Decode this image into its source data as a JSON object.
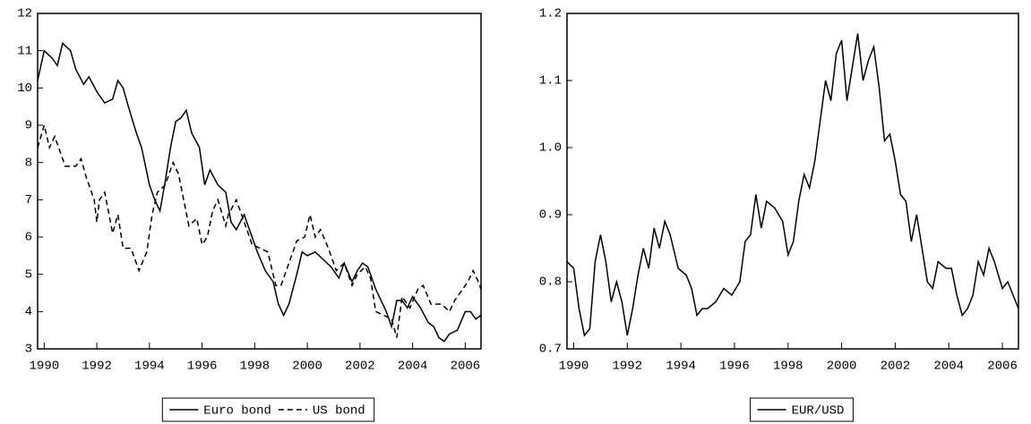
{
  "chart_data": [
    {
      "type": "line",
      "xlim": [
        1989.75,
        2006.6
      ],
      "xticks": [
        1990,
        1992,
        1994,
        1996,
        1998,
        2000,
        2002,
        2004,
        2006
      ],
      "ylim": [
        3,
        12
      ],
      "yticks": [
        3,
        4,
        5,
        6,
        7,
        8,
        9,
        10,
        11,
        12
      ],
      "series": [
        {
          "name": "Euro bond",
          "color": "#000000",
          "style": "solid",
          "x": [
            1989.75,
            1990.0,
            1990.3,
            1990.5,
            1990.7,
            1991.0,
            1991.2,
            1991.5,
            1991.7,
            1992.0,
            1992.3,
            1992.6,
            1992.8,
            1993.0,
            1993.2,
            1993.5,
            1993.7,
            1994.0,
            1994.2,
            1994.4,
            1994.6,
            1994.8,
            1995.0,
            1995.2,
            1995.4,
            1995.6,
            1995.9,
            1996.1,
            1996.3,
            1996.6,
            1996.9,
            1997.1,
            1997.3,
            1997.6,
            1997.9,
            1998.1,
            1998.4,
            1998.7,
            1998.9,
            1999.1,
            1999.3,
            1999.6,
            1999.8,
            2000.0,
            2000.3,
            2000.6,
            2000.9,
            2001.2,
            2001.4,
            2001.7,
            2001.9,
            2002.1,
            2002.3,
            2002.6,
            2002.8,
            2003.0,
            2003.2,
            2003.4,
            2003.6,
            2003.8,
            2004.0,
            2004.3,
            2004.6,
            2004.8,
            2005.0,
            2005.2,
            2005.4,
            2005.7,
            2006.0,
            2006.2,
            2006.4,
            2006.6
          ],
          "values": [
            10.2,
            11.0,
            10.8,
            10.6,
            11.2,
            11.0,
            10.5,
            10.1,
            10.3,
            9.9,
            9.6,
            9.7,
            10.2,
            10.0,
            9.5,
            8.8,
            8.4,
            7.4,
            7.0,
            6.7,
            7.5,
            8.4,
            9.1,
            9.2,
            9.4,
            8.8,
            8.4,
            7.4,
            7.8,
            7.4,
            7.2,
            6.4,
            6.2,
            6.6,
            6.0,
            5.6,
            5.1,
            4.8,
            4.2,
            3.9,
            4.2,
            5.0,
            5.6,
            5.5,
            5.6,
            5.4,
            5.2,
            4.9,
            5.3,
            4.8,
            5.1,
            5.3,
            5.2,
            4.6,
            4.3,
            4.0,
            3.6,
            4.3,
            4.3,
            4.1,
            4.4,
            4.1,
            3.7,
            3.6,
            3.3,
            3.2,
            3.4,
            3.5,
            4.0,
            4.0,
            3.8,
            3.9
          ]
        },
        {
          "name": "US bond",
          "color": "#000000",
          "style": "dashed",
          "x": [
            1989.75,
            1990.0,
            1990.2,
            1990.4,
            1990.6,
            1990.8,
            1991.2,
            1991.4,
            1991.6,
            1991.9,
            1992.0,
            1992.1,
            1992.3,
            1992.6,
            1992.8,
            1993.0,
            1993.3,
            1993.6,
            1993.9,
            1994.1,
            1994.3,
            1994.6,
            1994.9,
            1995.1,
            1995.3,
            1995.5,
            1995.8,
            1996.0,
            1996.2,
            1996.4,
            1996.6,
            1996.9,
            1997.0,
            1997.3,
            1997.6,
            1997.9,
            1998.2,
            1998.5,
            1998.8,
            1999.0,
            1999.3,
            1999.6,
            1999.9,
            2000.1,
            2000.3,
            2000.5,
            2000.8,
            2001.1,
            2001.4,
            2001.7,
            2001.9,
            2002.2,
            2002.4,
            2002.6,
            2002.9,
            2003.2,
            2003.4,
            2003.6,
            2003.9,
            2004.2,
            2004.4,
            2004.7,
            2004.9,
            2005.1,
            2005.4,
            2005.6,
            2005.8,
            2006.1,
            2006.3,
            2006.5,
            2006.6
          ],
          "values": [
            8.4,
            9.0,
            8.4,
            8.7,
            8.3,
            7.9,
            7.9,
            8.1,
            7.6,
            7.0,
            6.4,
            7.0,
            7.2,
            6.1,
            6.6,
            5.7,
            5.7,
            5.1,
            5.6,
            6.6,
            7.2,
            7.4,
            8.0,
            7.7,
            7.0,
            6.3,
            6.5,
            5.8,
            6.0,
            6.7,
            7.0,
            6.3,
            6.6,
            7.0,
            6.4,
            5.8,
            5.7,
            5.6,
            4.7,
            4.7,
            5.3,
            5.9,
            6.0,
            6.6,
            6.0,
            6.2,
            5.7,
            5.1,
            5.3,
            4.7,
            5.0,
            5.2,
            4.9,
            4.0,
            3.9,
            3.8,
            3.3,
            4.4,
            4.1,
            4.6,
            4.7,
            4.2,
            4.2,
            4.2,
            4.0,
            4.3,
            4.5,
            4.8,
            5.1,
            4.8,
            4.6
          ]
        }
      ]
    },
    {
      "type": "line",
      "xlim": [
        1989.75,
        2006.6
      ],
      "xticks": [
        1990,
        1992,
        1994,
        1996,
        1998,
        2000,
        2002,
        2004,
        2006
      ],
      "ylim": [
        0.7,
        1.2
      ],
      "yticks": [
        0.7,
        0.8,
        0.9,
        {
          "value": 1,
          "label": "1.0"
        },
        1.1,
        1.2
      ],
      "series": [
        {
          "name": "EUR/USD",
          "color": "#000000",
          "style": "solid",
          "x": [
            1989.75,
            1990.0,
            1990.2,
            1990.4,
            1990.6,
            1990.8,
            1991.0,
            1991.2,
            1991.4,
            1991.6,
            1991.8,
            1992.0,
            1992.2,
            1992.4,
            1992.6,
            1992.8,
            1993.0,
            1993.2,
            1993.4,
            1993.6,
            1993.9,
            1994.2,
            1994.4,
            1994.6,
            1994.8,
            1995.0,
            1995.3,
            1995.6,
            1995.9,
            1996.2,
            1996.4,
            1996.6,
            1996.8,
            1997.0,
            1997.2,
            1997.5,
            1997.8,
            1998.0,
            1998.2,
            1998.4,
            1998.6,
            1998.8,
            1999.0,
            1999.2,
            1999.4,
            1999.6,
            1999.8,
            2000.0,
            2000.2,
            2000.4,
            2000.6,
            2000.8,
            2001.0,
            2001.2,
            2001.4,
            2001.6,
            2001.8,
            2002.0,
            2002.2,
            2002.4,
            2002.6,
            2002.8,
            2003.0,
            2003.2,
            2003.4,
            2003.6,
            2003.9,
            2004.1,
            2004.3,
            2004.5,
            2004.7,
            2004.9,
            2005.1,
            2005.3,
            2005.5,
            2005.7,
            2006.0,
            2006.2,
            2006.4,
            2006.6
          ],
          "values": [
            0.83,
            0.82,
            0.76,
            0.72,
            0.73,
            0.83,
            0.87,
            0.83,
            0.77,
            0.8,
            0.77,
            0.72,
            0.76,
            0.81,
            0.85,
            0.82,
            0.88,
            0.85,
            0.89,
            0.87,
            0.82,
            0.81,
            0.79,
            0.75,
            0.76,
            0.76,
            0.77,
            0.79,
            0.78,
            0.8,
            0.86,
            0.87,
            0.93,
            0.88,
            0.92,
            0.91,
            0.89,
            0.84,
            0.86,
            0.92,
            0.96,
            0.94,
            0.98,
            1.04,
            1.1,
            1.07,
            1.14,
            1.16,
            1.07,
            1.12,
            1.17,
            1.1,
            1.13,
            1.15,
            1.09,
            1.01,
            1.02,
            0.98,
            0.93,
            0.92,
            0.86,
            0.9,
            0.85,
            0.8,
            0.79,
            0.83,
            0.82,
            0.82,
            0.78,
            0.75,
            0.76,
            0.78,
            0.83,
            0.81,
            0.85,
            0.83,
            0.79,
            0.8,
            0.78,
            0.76
          ]
        }
      ]
    }
  ]
}
